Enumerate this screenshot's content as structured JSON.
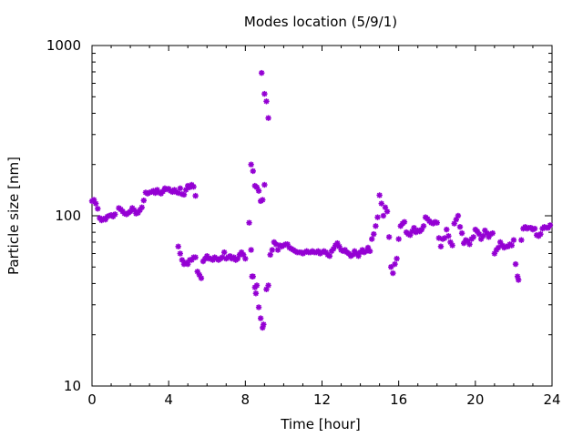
{
  "chart_data": {
    "type": "scatter",
    "title": "Modes location (5/9/1)",
    "xlabel": "Time [hour]",
    "ylabel": "Particle size [nm]",
    "xlim": [
      0,
      24
    ],
    "ylim": [
      10,
      1000
    ],
    "yscale": "log",
    "xticks": [
      0,
      4,
      8,
      12,
      16,
      20,
      24
    ],
    "xtick_labels": [
      "0",
      "4",
      "8",
      "12",
      "16",
      "20",
      "24"
    ],
    "yticks": [
      10,
      100,
      1000
    ],
    "ytick_labels": [
      "10",
      "100",
      "1000"
    ],
    "grid": false,
    "legend": "none",
    "marker": "star",
    "color": "#9400d3",
    "series": [
      {
        "points": [
          [
            0.0,
            122
          ],
          [
            0.1,
            124
          ],
          [
            0.2,
            118
          ],
          [
            0.3,
            110
          ],
          [
            0.4,
            97
          ],
          [
            0.5,
            94
          ],
          [
            0.6,
            96
          ],
          [
            0.7,
            95
          ],
          [
            0.8,
            99
          ],
          [
            0.9,
            100
          ],
          [
            1.0,
            101
          ],
          [
            1.1,
            99
          ],
          [
            1.2,
            102
          ],
          [
            1.4,
            111
          ],
          [
            1.5,
            109
          ],
          [
            1.6,
            106
          ],
          [
            1.7,
            103
          ],
          [
            1.8,
            102
          ],
          [
            1.9,
            104
          ],
          [
            2.0,
            106
          ],
          [
            2.1,
            111
          ],
          [
            2.2,
            108
          ],
          [
            2.3,
            103
          ],
          [
            2.4,
            104
          ],
          [
            2.5,
            108
          ],
          [
            2.6,
            112
          ],
          [
            2.7,
            123
          ],
          [
            2.8,
            137
          ],
          [
            2.9,
            135
          ],
          [
            3.0,
            137
          ],
          [
            3.1,
            138
          ],
          [
            3.2,
            140
          ],
          [
            3.3,
            136
          ],
          [
            3.4,
            142
          ],
          [
            3.5,
            137
          ],
          [
            3.6,
            135
          ],
          [
            3.7,
            139
          ],
          [
            3.8,
            145
          ],
          [
            3.9,
            143
          ],
          [
            4.0,
            144
          ],
          [
            4.1,
            140
          ],
          [
            4.2,
            138
          ],
          [
            4.3,
            142
          ],
          [
            4.4,
            138
          ],
          [
            4.5,
            136
          ],
          [
            4.6,
            145
          ],
          [
            4.7,
            134
          ],
          [
            4.8,
            133
          ],
          [
            4.9,
            142
          ],
          [
            5.0,
            150
          ],
          [
            5.1,
            147
          ],
          [
            5.2,
            152
          ],
          [
            5.3,
            148
          ],
          [
            5.4,
            131
          ],
          [
            4.5,
            66
          ],
          [
            4.6,
            60
          ],
          [
            4.7,
            55
          ],
          [
            4.8,
            52
          ],
          [
            4.9,
            53
          ],
          [
            5.0,
            52
          ],
          [
            5.1,
            55
          ],
          [
            5.2,
            55
          ],
          [
            5.3,
            57
          ],
          [
            5.4,
            57
          ],
          [
            5.5,
            47
          ],
          [
            5.6,
            45
          ],
          [
            5.7,
            43
          ],
          [
            5.8,
            54
          ],
          [
            5.9,
            56
          ],
          [
            6.0,
            58
          ],
          [
            6.1,
            56
          ],
          [
            6.2,
            56
          ],
          [
            6.3,
            55
          ],
          [
            6.4,
            57
          ],
          [
            6.5,
            56
          ],
          [
            6.6,
            55
          ],
          [
            6.7,
            56
          ],
          [
            6.8,
            57
          ],
          [
            6.9,
            61
          ],
          [
            7.0,
            56
          ],
          [
            7.1,
            57
          ],
          [
            7.2,
            58
          ],
          [
            7.3,
            56
          ],
          [
            7.4,
            57
          ],
          [
            7.5,
            55
          ],
          [
            7.6,
            56
          ],
          [
            7.7,
            59
          ],
          [
            7.8,
            61
          ],
          [
            7.9,
            59
          ],
          [
            8.0,
            56
          ],
          [
            8.2,
            91
          ],
          [
            8.3,
            63
          ],
          [
            8.35,
            44
          ],
          [
            8.4,
            44
          ],
          [
            8.5,
            38
          ],
          [
            8.55,
            35
          ],
          [
            8.6,
            39
          ],
          [
            8.7,
            29
          ],
          [
            8.8,
            25
          ],
          [
            8.9,
            22
          ],
          [
            8.95,
            23
          ],
          [
            9.1,
            37
          ],
          [
            9.2,
            39
          ],
          [
            8.3,
            200
          ],
          [
            8.4,
            183
          ],
          [
            8.5,
            150
          ],
          [
            8.6,
            147
          ],
          [
            8.7,
            140
          ],
          [
            8.8,
            122
          ],
          [
            8.9,
            124
          ],
          [
            9.0,
            152
          ],
          [
            8.85,
            690
          ],
          [
            9.0,
            520
          ],
          [
            9.1,
            470
          ],
          [
            9.2,
            375
          ],
          [
            9.3,
            59
          ],
          [
            9.4,
            63
          ],
          [
            9.5,
            70
          ],
          [
            9.6,
            68
          ],
          [
            9.7,
            63
          ],
          [
            9.8,
            67
          ],
          [
            9.9,
            66
          ],
          [
            10.0,
            67
          ],
          [
            10.1,
            68
          ],
          [
            10.2,
            68
          ],
          [
            10.3,
            65
          ],
          [
            10.4,
            64
          ],
          [
            10.5,
            63
          ],
          [
            10.6,
            62
          ],
          [
            10.7,
            61
          ],
          [
            10.8,
            61
          ],
          [
            10.9,
            61
          ],
          [
            11.0,
            60
          ],
          [
            11.1,
            61
          ],
          [
            11.2,
            62
          ],
          [
            11.3,
            61
          ],
          [
            11.4,
            61
          ],
          [
            11.5,
            62
          ],
          [
            11.6,
            61
          ],
          [
            11.7,
            61
          ],
          [
            11.8,
            62
          ],
          [
            11.9,
            60
          ],
          [
            12.0,
            61
          ],
          [
            12.1,
            62
          ],
          [
            12.2,
            61
          ],
          [
            12.3,
            59
          ],
          [
            12.4,
            58
          ],
          [
            12.5,
            62
          ],
          [
            12.6,
            64
          ],
          [
            12.7,
            67
          ],
          [
            12.8,
            69
          ],
          [
            12.9,
            66
          ],
          [
            13.0,
            63
          ],
          [
            13.1,
            62
          ],
          [
            13.2,
            63
          ],
          [
            13.3,
            61
          ],
          [
            13.4,
            60
          ],
          [
            13.5,
            58
          ],
          [
            13.6,
            59
          ],
          [
            13.7,
            62
          ],
          [
            13.8,
            60
          ],
          [
            13.9,
            58
          ],
          [
            14.0,
            61
          ],
          [
            14.1,
            63
          ],
          [
            14.2,
            61
          ],
          [
            14.3,
            62
          ],
          [
            14.4,
            65
          ],
          [
            14.5,
            62
          ],
          [
            14.6,
            73
          ],
          [
            14.7,
            78
          ],
          [
            14.8,
            87
          ],
          [
            14.9,
            98
          ],
          [
            15.0,
            132
          ],
          [
            15.1,
            118
          ],
          [
            15.2,
            100
          ],
          [
            15.3,
            112
          ],
          [
            15.4,
            106
          ],
          [
            15.5,
            75
          ],
          [
            15.6,
            50
          ],
          [
            15.7,
            46
          ],
          [
            15.8,
            52
          ],
          [
            15.9,
            56
          ],
          [
            16.0,
            73
          ],
          [
            16.1,
            87
          ],
          [
            16.2,
            90
          ],
          [
            16.3,
            92
          ],
          [
            16.4,
            80
          ],
          [
            16.5,
            78
          ],
          [
            16.6,
            77
          ],
          [
            16.7,
            81
          ],
          [
            16.8,
            85
          ],
          [
            16.9,
            80
          ],
          [
            17.0,
            82
          ],
          [
            17.1,
            81
          ],
          [
            17.2,
            83
          ],
          [
            17.3,
            87
          ],
          [
            17.4,
            98
          ],
          [
            17.5,
            96
          ],
          [
            17.6,
            93
          ],
          [
            17.7,
            91
          ],
          [
            17.8,
            90
          ],
          [
            17.9,
            92
          ],
          [
            18.0,
            91
          ],
          [
            18.1,
            74
          ],
          [
            18.2,
            66
          ],
          [
            18.3,
            73
          ],
          [
            18.4,
            74
          ],
          [
            18.5,
            83
          ],
          [
            18.6,
            76
          ],
          [
            18.7,
            70
          ],
          [
            18.8,
            67
          ],
          [
            18.9,
            90
          ],
          [
            19.0,
            95
          ],
          [
            19.1,
            100
          ],
          [
            19.2,
            86
          ],
          [
            19.3,
            79
          ],
          [
            19.4,
            69
          ],
          [
            19.5,
            72
          ],
          [
            19.6,
            71
          ],
          [
            19.7,
            68
          ],
          [
            19.8,
            73
          ],
          [
            19.9,
            75
          ],
          [
            20.0,
            83
          ],
          [
            20.1,
            81
          ],
          [
            20.2,
            78
          ],
          [
            20.3,
            73
          ],
          [
            20.4,
            76
          ],
          [
            20.5,
            82
          ],
          [
            20.6,
            79
          ],
          [
            20.7,
            75
          ],
          [
            20.8,
            78
          ],
          [
            20.9,
            79
          ],
          [
            21.0,
            60
          ],
          [
            21.1,
            63
          ],
          [
            21.2,
            65
          ],
          [
            21.3,
            70
          ],
          [
            21.4,
            67
          ],
          [
            21.5,
            65
          ],
          [
            21.6,
            66
          ],
          [
            21.7,
            66
          ],
          [
            21.8,
            68
          ],
          [
            21.9,
            67
          ],
          [
            22.0,
            72
          ],
          [
            22.1,
            52
          ],
          [
            22.2,
            44
          ],
          [
            22.25,
            42
          ],
          [
            22.4,
            72
          ],
          [
            22.5,
            84
          ],
          [
            22.6,
            86
          ],
          [
            22.7,
            84
          ],
          [
            22.8,
            85
          ],
          [
            22.9,
            85
          ],
          [
            23.0,
            83
          ],
          [
            23.1,
            84
          ],
          [
            23.2,
            77
          ],
          [
            23.3,
            76
          ],
          [
            23.4,
            78
          ],
          [
            23.5,
            84
          ],
          [
            23.6,
            86
          ],
          [
            23.7,
            85
          ],
          [
            23.8,
            85
          ],
          [
            23.9,
            88
          ]
        ]
      }
    ]
  }
}
